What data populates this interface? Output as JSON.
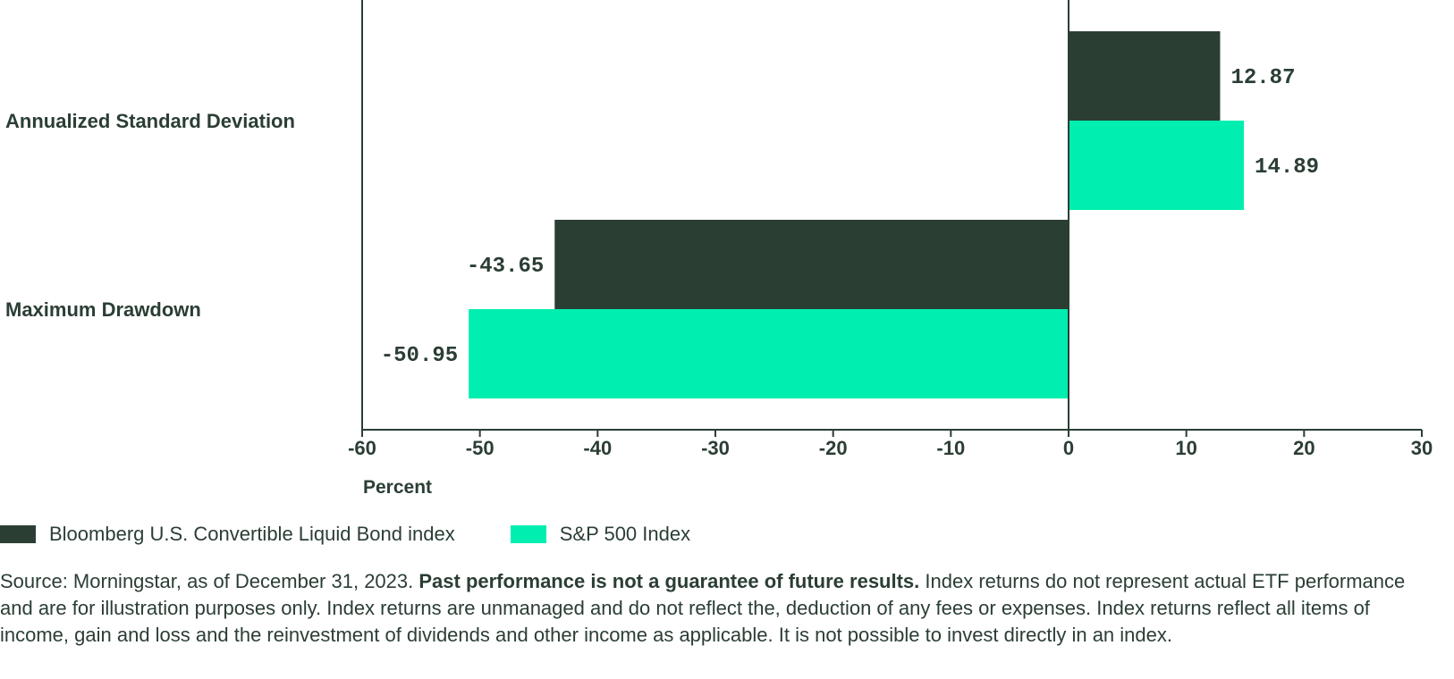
{
  "chart_data": {
    "type": "bar",
    "orientation": "horizontal",
    "categories": [
      "Annualized Standard Deviation",
      "Maximum Drawdown"
    ],
    "series": [
      {
        "name": "Bloomberg U.S. Convertible Liquid Bond index",
        "color": "#2b3e34",
        "values": [
          12.87,
          -43.65
        ],
        "value_labels": [
          "12.87",
          "-43.65"
        ]
      },
      {
        "name": "S&P 500 Index",
        "color": "#00efb0",
        "values": [
          14.89,
          -50.95
        ],
        "value_labels": [
          "14.89",
          "-50.95"
        ]
      }
    ],
    "xlabel": "Percent",
    "xlim": [
      -60,
      30
    ],
    "xticks": [
      -60,
      -50,
      -40,
      -30,
      -20,
      -10,
      0,
      10,
      20,
      30
    ],
    "grid": false,
    "legend_position": "bottom-left"
  },
  "footnote": {
    "lead": "Source: Morningstar, as of December 31, 2023. ",
    "bold": "Past performance is not a guarantee of future results.",
    "rest": " Index returns do not represent actual ETF performance and are for illustration purposes only. Index returns are unmanaged and do not reflect the, deduction of any fees or expenses. Index returns reflect all items of income, gain and loss and the reinvestment of dividends and other income as applicable. It is not possible to invest directly in an index."
  }
}
